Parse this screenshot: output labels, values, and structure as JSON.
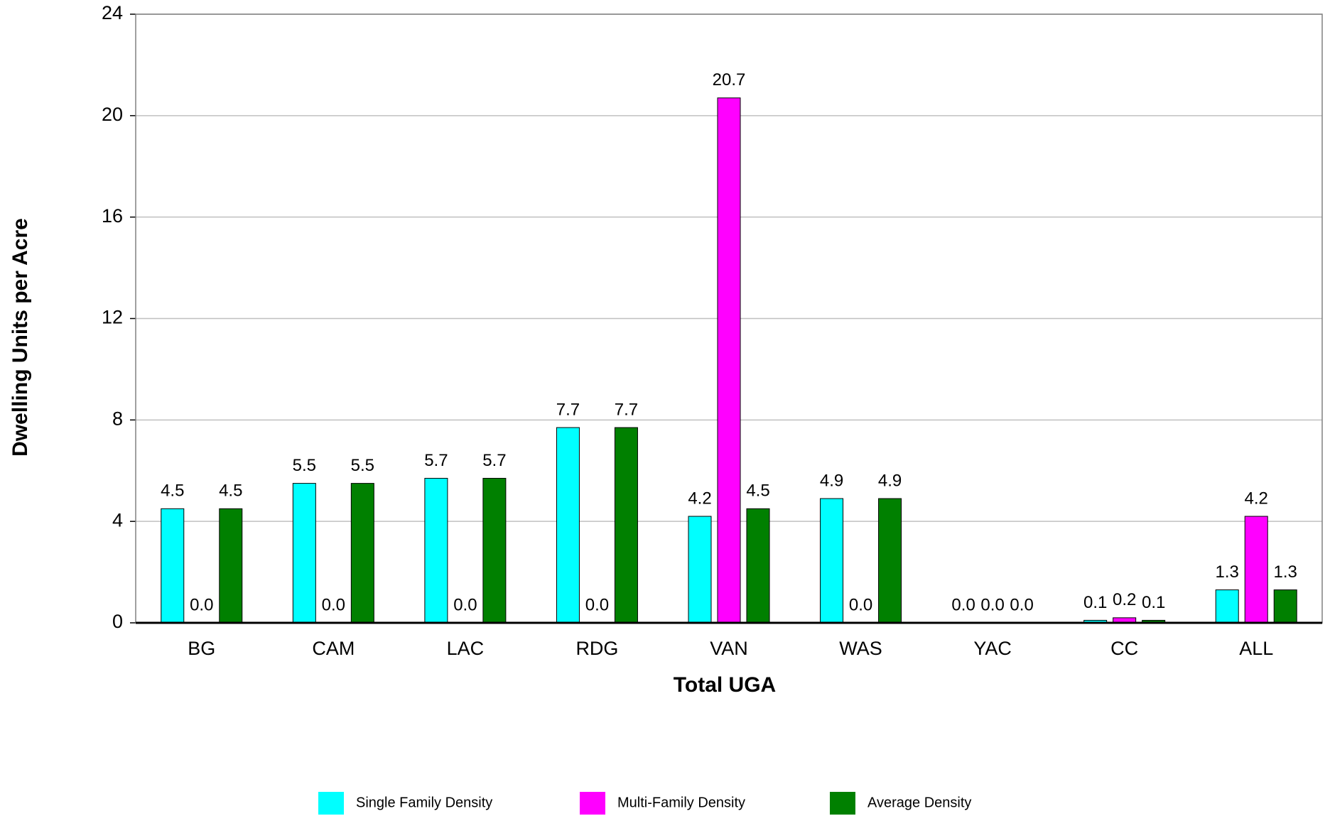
{
  "chart_data": {
    "type": "bar",
    "categories": [
      "BG",
      "CAM",
      "LAC",
      "RDG",
      "VAN",
      "WAS",
      "YAC",
      "CC",
      "ALL"
    ],
    "series": [
      {
        "name": "Single Family Density",
        "color": "#00ffff",
        "values": [
          4.5,
          5.5,
          5.7,
          7.7,
          4.2,
          4.9,
          0.0,
          0.1,
          1.3
        ],
        "value_labels": [
          "4.5",
          "5.5",
          "5.7",
          "7.7",
          "4.2",
          "4.9",
          "0.0",
          "0.1",
          "1.3"
        ]
      },
      {
        "name": "Multi-Family Density",
        "color": "#ff00ff",
        "values": [
          0.0,
          0.0,
          0.0,
          0.0,
          20.7,
          0.0,
          0.0,
          0.2,
          4.2
        ],
        "value_labels": [
          "0.0",
          "0.0",
          "0.0",
          "0.0",
          "20.7",
          "0.0",
          "0.0",
          "0.2",
          "4.2"
        ]
      },
      {
        "name": "Average Density",
        "color": "#008000",
        "values": [
          4.5,
          5.5,
          5.7,
          7.7,
          4.5,
          4.9,
          0.0,
          0.1,
          1.3
        ],
        "value_labels": [
          "4.5",
          "5.5",
          "5.7",
          "7.7",
          "4.5",
          "4.9",
          "0.0",
          "0.1",
          "1.3"
        ]
      }
    ],
    "xlabel": "Total UGA",
    "ylabel": "Dwelling Units per Acre",
    "ylim": [
      0,
      24
    ],
    "yticks": [
      0,
      4,
      8,
      12,
      16,
      20,
      24
    ],
    "grid": true
  }
}
